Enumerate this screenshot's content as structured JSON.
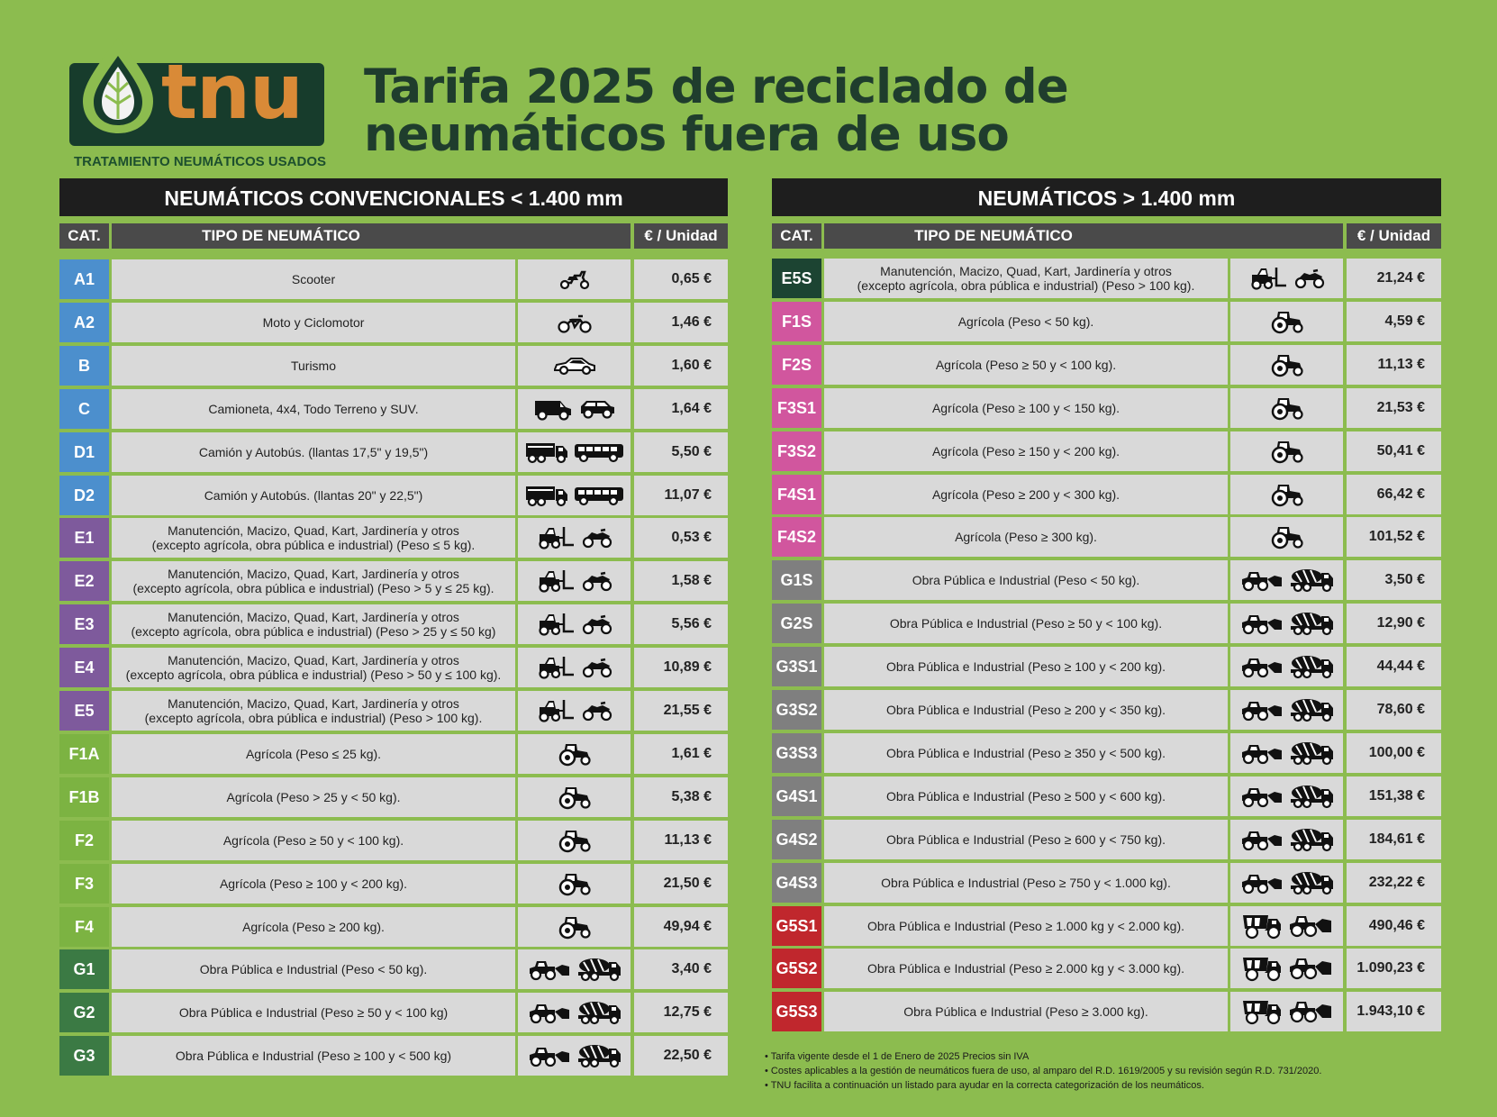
{
  "brand": {
    "name": "tnu",
    "subtitle": "TRATAMIENTO NEUMÁTICOS USADOS"
  },
  "title": [
    "Tarifa 2025 de reciclado de",
    "neumáticos fuera de uso"
  ],
  "colors": {
    "background": "#8cbc4f",
    "header": "#1e1e1e",
    "column_header": "#4a4a4a",
    "cell": "#d9d9d9",
    "blue": "#4c8fcd",
    "purple": "#7e5a9c",
    "light_green": "#7cb342",
    "dark_green": "#3b7a44",
    "very_dark_green": "#1c4432",
    "pink": "#d1569e",
    "gray": "#7f7f7f",
    "red": "#c0272d"
  },
  "left": {
    "heading": "NEUMÁTICOS CONVENCIONALES < 1.400 mm",
    "col_cat": "CAT.",
    "col_type": "TIPO DE NEUMÁTICO",
    "col_price": "€ / Unidad",
    "rows": [
      {
        "cat": "A1",
        "lines": [
          "Scooter"
        ],
        "icons": [
          "scooter-icon"
        ],
        "price": "0,65 €",
        "color": "blue"
      },
      {
        "cat": "A2",
        "lines": [
          "Moto y Ciclomotor"
        ],
        "icons": [
          "motorbike-icon"
        ],
        "price": "1,46 €",
        "color": "blue"
      },
      {
        "cat": "B",
        "lines": [
          "Turismo"
        ],
        "icons": [
          "car-icon"
        ],
        "price": "1,60 €",
        "color": "blue"
      },
      {
        "cat": "C",
        "lines": [
          "Camioneta, 4x4, Todo Terreno y SUV."
        ],
        "icons": [
          "van-icon",
          "suv-icon"
        ],
        "price": "1,64 €",
        "color": "blue"
      },
      {
        "cat": "D1",
        "lines": [
          "Camión y Autobús. (llantas 17,5\" y 19,5\")"
        ],
        "icons": [
          "truck-icon",
          "bus-icon"
        ],
        "price": "5,50 €",
        "color": "blue"
      },
      {
        "cat": "D2",
        "lines": [
          "Camión y Autobús. (llantas 20\" y 22,5\")"
        ],
        "icons": [
          "truck-icon",
          "bus-icon"
        ],
        "price": "11,07 €",
        "color": "blue"
      },
      {
        "cat": "E1",
        "lines": [
          "Manutención, Macizo, Quad, Kart, Jardinería y otros",
          "(excepto agrícola, obra pública e industrial)  (Peso ≤ 5 kg)."
        ],
        "icons": [
          "forklift-icon",
          "quad-icon"
        ],
        "price": "0,53 €",
        "color": "purple"
      },
      {
        "cat": "E2",
        "lines": [
          "Manutención, Macizo, Quad, Kart, Jardinería y otros",
          "(excepto agrícola, obra pública e industrial) (Peso > 5 y ≤ 25 kg)."
        ],
        "icons": [
          "forklift-icon",
          "quad-icon"
        ],
        "price": "1,58 €",
        "color": "purple"
      },
      {
        "cat": "E3",
        "lines": [
          "Manutención, Macizo, Quad, Kart, Jardinería y otros",
          "(excepto agrícola, obra pública e industrial) (Peso > 25 y ≤ 50 kg)"
        ],
        "icons": [
          "forklift-icon",
          "quad-icon"
        ],
        "price": "5,56 €",
        "color": "purple"
      },
      {
        "cat": "E4",
        "lines": [
          "Manutención, Macizo, Quad, Kart, Jardinería y otros",
          "(excepto agrícola, obra pública e industrial) (Peso > 50 y ≤ 100 kg)."
        ],
        "icons": [
          "forklift-icon",
          "quad-icon"
        ],
        "price": "10,89 €",
        "color": "purple"
      },
      {
        "cat": "E5",
        "lines": [
          "Manutención, Macizo, Quad, Kart, Jardinería y otros",
          "(excepto agrícola, obra pública e industrial) (Peso > 100 kg)."
        ],
        "icons": [
          "forklift-icon",
          "quad-icon"
        ],
        "price": "21,55 €",
        "color": "purple"
      },
      {
        "cat": "F1A",
        "lines": [
          "Agrícola (Peso ≤ 25 kg)."
        ],
        "icons": [
          "tractor-icon"
        ],
        "price": "1,61 €",
        "color": "light_green"
      },
      {
        "cat": "F1B",
        "lines": [
          "Agrícola (Peso > 25 y < 50 kg)."
        ],
        "icons": [
          "tractor-icon"
        ],
        "price": "5,38 €",
        "color": "light_green"
      },
      {
        "cat": "F2",
        "lines": [
          "Agrícola (Peso ≥ 50 y < 100 kg)."
        ],
        "icons": [
          "tractor-icon"
        ],
        "price": "11,13 €",
        "color": "light_green"
      },
      {
        "cat": "F3",
        "lines": [
          "Agrícola (Peso ≥ 100 y < 200 kg)."
        ],
        "icons": [
          "tractor-icon"
        ],
        "price": "21,50 €",
        "color": "light_green"
      },
      {
        "cat": "F4",
        "lines": [
          "Agrícola (Peso ≥ 200 kg)."
        ],
        "icons": [
          "tractor-icon"
        ],
        "price": "49,94 €",
        "color": "light_green"
      },
      {
        "cat": "G1",
        "lines": [
          "Obra Pública e Industrial (Peso < 50 kg)."
        ],
        "icons": [
          "loader-icon",
          "mixer-truck-icon"
        ],
        "price": "3,40 €",
        "color": "dark_green"
      },
      {
        "cat": "G2",
        "lines": [
          "Obra Pública e Industrial (Peso ≥ 50 y < 100 kg)"
        ],
        "icons": [
          "loader-icon",
          "mixer-truck-icon"
        ],
        "price": "12,75 €",
        "color": "dark_green"
      },
      {
        "cat": "G3",
        "lines": [
          "Obra Pública e Industrial (Peso ≥ 100 y < 500 kg)"
        ],
        "icons": [
          "loader-icon",
          "mixer-truck-icon"
        ],
        "price": "22,50 €",
        "color": "dark_green"
      }
    ]
  },
  "right": {
    "heading": "NEUMÁTICOS > 1.400 mm",
    "col_cat": "CAT.",
    "col_type": "TIPO DE NEUMÁTICO",
    "col_price": "€ / Unidad",
    "rows": [
      {
        "cat": "E5S",
        "lines": [
          "Manutención, Macizo, Quad, Kart, Jardinería y otros",
          "(excepto agrícola, obra pública e industrial) (Peso > 100 kg)."
        ],
        "icons": [
          "forklift-icon",
          "quad-icon"
        ],
        "price": "21,24 €",
        "color": "very_dark_green"
      },
      {
        "cat": "F1S",
        "lines": [
          "Agrícola (Peso < 50 kg)."
        ],
        "icons": [
          "tractor-icon"
        ],
        "price": "4,59 €",
        "color": "pink"
      },
      {
        "cat": "F2S",
        "lines": [
          "Agrícola (Peso ≥ 50 y < 100 kg)."
        ],
        "icons": [
          "tractor-icon"
        ],
        "price": "11,13 €",
        "color": "pink"
      },
      {
        "cat": "F3S1",
        "lines": [
          "Agrícola (Peso ≥ 100 y < 150 kg)."
        ],
        "icons": [
          "tractor-icon"
        ],
        "price": "21,53 €",
        "color": "pink"
      },
      {
        "cat": "F3S2",
        "lines": [
          "Agrícola (Peso ≥ 150 y < 200 kg)."
        ],
        "icons": [
          "tractor-icon"
        ],
        "price": "50,41 €",
        "color": "pink"
      },
      {
        "cat": "F4S1",
        "lines": [
          "Agrícola (Peso ≥ 200 y < 300 kg)."
        ],
        "icons": [
          "tractor-icon"
        ],
        "price": "66,42 €",
        "color": "pink"
      },
      {
        "cat": "F4S2",
        "lines": [
          "Agrícola (Peso ≥ 300 kg)."
        ],
        "icons": [
          "tractor-icon"
        ],
        "price": "101,52 €",
        "color": "pink"
      },
      {
        "cat": "G1S",
        "lines": [
          "Obra Pública e Industrial (Peso < 50 kg)."
        ],
        "icons": [
          "loader-icon",
          "mixer-truck-icon"
        ],
        "price": "3,50 €",
        "color": "gray"
      },
      {
        "cat": "G2S",
        "lines": [
          "Obra Pública e Industrial (Peso ≥ 50 y < 100 kg)."
        ],
        "icons": [
          "loader-icon",
          "mixer-truck-icon"
        ],
        "price": "12,90 €",
        "color": "gray"
      },
      {
        "cat": "G3S1",
        "lines": [
          "Obra Pública e Industrial (Peso ≥ 100 y < 200 kg)."
        ],
        "icons": [
          "loader-icon",
          "mixer-truck-icon"
        ],
        "price": "44,44 €",
        "color": "gray"
      },
      {
        "cat": "G3S2",
        "lines": [
          "Obra Pública e Industrial (Peso ≥ 200 y < 350 kg)."
        ],
        "icons": [
          "loader-icon",
          "mixer-truck-icon"
        ],
        "price": "78,60 €",
        "color": "gray"
      },
      {
        "cat": "G3S3",
        "lines": [
          "Obra Pública e Industrial (Peso ≥ 350 y < 500 kg)."
        ],
        "icons": [
          "loader-icon",
          "mixer-truck-icon"
        ],
        "price": "100,00 €",
        "color": "gray"
      },
      {
        "cat": "G4S1",
        "lines": [
          "Obra Pública e Industrial (Peso ≥ 500 y < 600 kg)."
        ],
        "icons": [
          "loader-icon",
          "mixer-truck-icon"
        ],
        "price": "151,38 €",
        "color": "gray"
      },
      {
        "cat": "G4S2",
        "lines": [
          "Obra Pública e Industrial (Peso ≥ 600 y < 750 kg)."
        ],
        "icons": [
          "loader-icon",
          "mixer-truck-icon"
        ],
        "price": "184,61 €",
        "color": "gray"
      },
      {
        "cat": "G4S3",
        "lines": [
          "Obra Pública e Industrial (Peso ≥ 750 y < 1.000 kg)."
        ],
        "icons": [
          "loader-icon",
          "mixer-truck-icon"
        ],
        "price": "232,22 €",
        "color": "gray"
      },
      {
        "cat": "G5S1",
        "lines": [
          "Obra Pública e Industrial (Peso ≥ 1.000 kg y < 2.000 kg)."
        ],
        "icons": [
          "dump-truck-icon",
          "big-loader-icon"
        ],
        "price": "490,46 €",
        "color": "red"
      },
      {
        "cat": "G5S2",
        "lines": [
          "Obra Pública e Industrial (Peso ≥ 2.000 kg y < 3.000 kg)."
        ],
        "icons": [
          "dump-truck-icon",
          "big-loader-icon"
        ],
        "price": "1.090,23 €",
        "color": "red"
      },
      {
        "cat": "G5S3",
        "lines": [
          "Obra Pública e Industrial (Peso ≥ 3.000 kg)."
        ],
        "icons": [
          "dump-truck-icon",
          "big-loader-icon"
        ],
        "price": "1.943,10 €",
        "color": "red"
      }
    ]
  },
  "notes": [
    "• Tarifa vigente desde el 1 de Enero de 2025 Precios sin IVA",
    "• Costes aplicables a la gestión de neumáticos fuera de uso, al amparo del R.D. 1619/2005 y su revisión según R.D. 731/2020.",
    "• TNU facilita a continuación un listado para ayudar en la correcta categorización de los neumáticos."
  ]
}
